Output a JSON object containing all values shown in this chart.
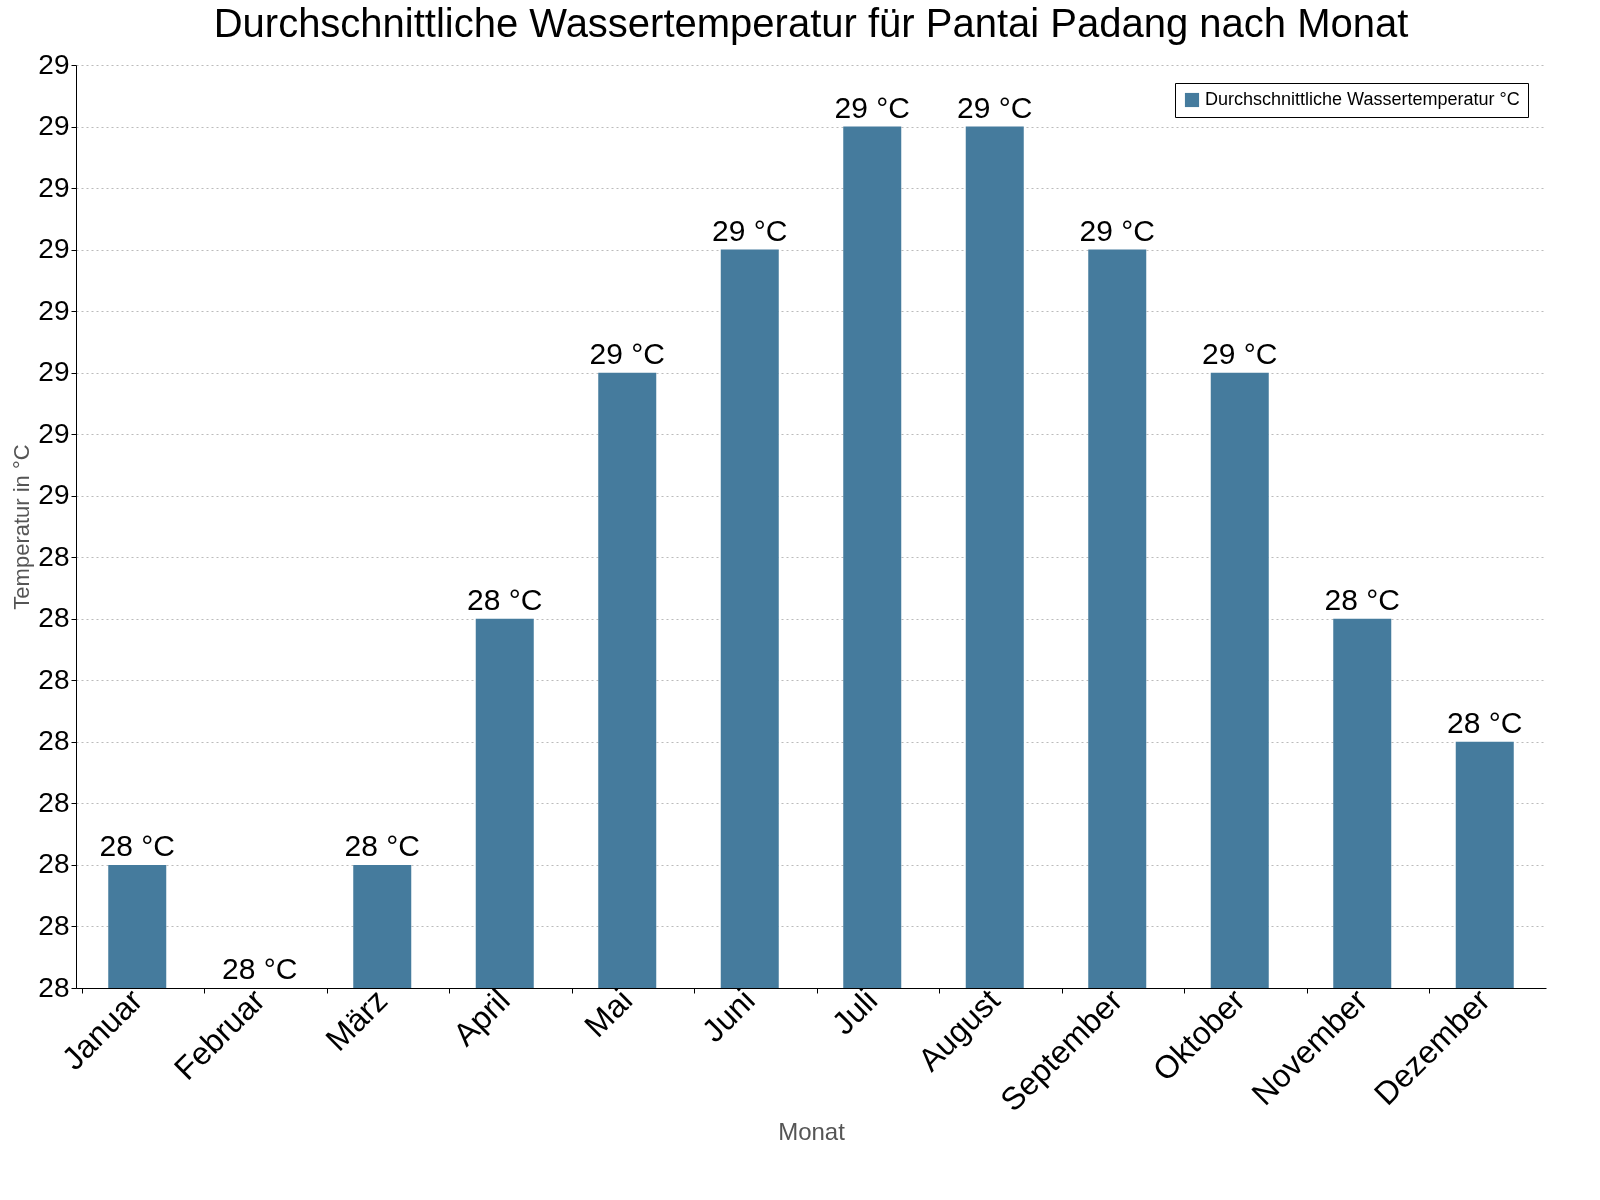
{
  "chart_data": {
    "type": "bar",
    "title": "Durchschnittliche Wassertemperatur für Pantai Padang nach Monat",
    "xlabel": "Monat",
    "ylabel": "Temperatur in °C",
    "categories": [
      "Januar",
      "Februar",
      "März",
      "April",
      "Mai",
      "Juni",
      "Juli",
      "August",
      "September",
      "Oktober",
      "November",
      "Dezember"
    ],
    "series": [
      {
        "name": "Durchschnittliche Wassertemperatur °C",
        "color": "#457b9d",
        "values": [
          27.9,
          27.7,
          27.9,
          28.3,
          28.7,
          28.9,
          29.1,
          29.1,
          28.9,
          28.7,
          28.3,
          28.1
        ],
        "value_labels": [
          "28 °C",
          "28 °C",
          "28 °C",
          "28 °C",
          "29 °C",
          "29 °C",
          "29 °C",
          "29 °C",
          "29 °C",
          "29 °C",
          "28 °C",
          "28 °C"
        ]
      }
    ],
    "ylim": [
      27.7,
      29.2
    ],
    "yticks": [
      {
        "value": 27.7,
        "label": "28"
      },
      {
        "value": 27.8,
        "label": "28"
      },
      {
        "value": 27.9,
        "label": "28"
      },
      {
        "value": 28.0,
        "label": "28"
      },
      {
        "value": 28.1,
        "label": "28"
      },
      {
        "value": 28.2,
        "label": "28"
      },
      {
        "value": 28.3,
        "label": "28"
      },
      {
        "value": 28.4,
        "label": "28"
      },
      {
        "value": 28.5,
        "label": "29"
      },
      {
        "value": 28.6,
        "label": "29"
      },
      {
        "value": 28.7,
        "label": "29"
      },
      {
        "value": 28.8,
        "label": "29"
      },
      {
        "value": 28.9,
        "label": "29"
      },
      {
        "value": 29.0,
        "label": "29"
      },
      {
        "value": 29.1,
        "label": "29"
      },
      {
        "value": 29.2,
        "label": "29"
      }
    ],
    "grid": "y",
    "legend": "top right"
  }
}
